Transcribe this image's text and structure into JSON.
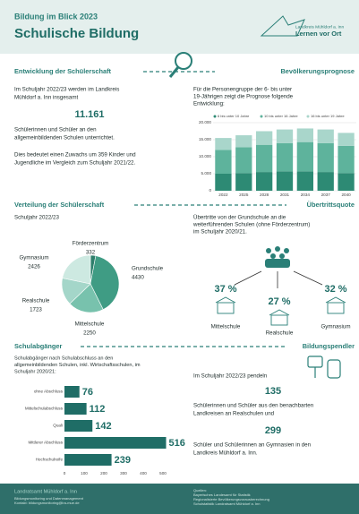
{
  "header": {
    "kicker": "Bildung im Blick 2023",
    "title": "Schulische Bildung",
    "logo_small": "Landkreis Mühldorf a. Inn",
    "logo_big": "Lernen vor Ort"
  },
  "enrolment": {
    "heading": "Entwicklung der Schülerschaft",
    "lines_a": [
      "Im Schuljahr 2022/23 werden im Landkreis",
      "Mühldorf a. Inn insgesamt"
    ],
    "total": "11.161",
    "lines_b": [
      "Schülerinnen und Schüler an den",
      "allgemeinbildenden Schulen unterrichtet."
    ],
    "lines_c": [
      "Dies bedeutet einen Zuwachs um 359 Kinder und",
      "Jugendliche im Vergleich zum Schuljahr 2021/22."
    ]
  },
  "forecast": {
    "heading": "Bevölkerungsprognose",
    "lines": [
      "Für die Personengruppe der 6- bis unter",
      "19-Jährigen zeigt die Prognose folgende",
      "Entwicklung:"
    ]
  },
  "distribution": {
    "heading": "Verteilung der Schülerschaft",
    "subtitle": "Schuljahr 2022/23"
  },
  "transition": {
    "heading": "Übertrittsquote",
    "lines": [
      "Übertritte von der Grundschule an die",
      "weiterführenden Schulen (ohne Förderzentrum)",
      "im Schuljahr 2020/21."
    ],
    "items": [
      {
        "share": "37 %",
        "school": "Mittelschule"
      },
      {
        "share": "27 %",
        "school": "Realschule"
      },
      {
        "share": "32 %",
        "school": "Gymnasium"
      }
    ]
  },
  "leavers": {
    "heading": "Schulabgänger",
    "lines": [
      "Schulabgänger nach Schulabschluss an den",
      "allgemeinbildenden Schulen, inkl. Wirtschaftsschulen, im",
      "Schuljahr 2020/21:"
    ]
  },
  "commuters": {
    "heading": "Bildungspendler",
    "intro": "Im Schuljahr 2022/23 pendeln",
    "n1": "135",
    "lines_a": [
      "Schülerinnen und Schüler aus den benachbarten",
      "Landkreisen an Realschulen und"
    ],
    "n2": "299",
    "lines_b": [
      "Schüler und Schülerinnen an Gymnasien in den",
      "Landkreis Mühldorf a. Inn."
    ]
  },
  "footer": {
    "org": "Landratsamt Mühldorf a. Inn",
    "lines": [
      "Bildungsmonitoring und Datenmanagement",
      "Kontakt: bildungsmonitoring@lra-mue.de"
    ],
    "sources": [
      "Quellen:",
      "Bayerisches Landesamt für Statistik",
      "Regionalisierte Bevölkerungsvorausberechnung",
      "Schulstatistik Landratsamt Mühldorf a. Inn"
    ]
  },
  "chart_data": [
    {
      "type": "bar",
      "stacked": true,
      "categories": [
        "2022",
        "2025",
        "2028",
        "2031",
        "2034",
        "2037",
        "2040"
      ],
      "series": [
        {
          "name": "6 bis unter 10 Jahre",
          "color": "#2d8a74",
          "values": [
            5000,
            5200,
            5500,
            5700,
            5700,
            5500,
            5200
          ]
        },
        {
          "name": "10 bis unter 16 Jahre",
          "color": "#5eb39c",
          "values": [
            7000,
            7600,
            8000,
            8300,
            8600,
            8500,
            8000
          ]
        },
        {
          "name": "16 bis unter 19 Jahre",
          "color": "#a9d6cb",
          "values": [
            3500,
            3500,
            4000,
            4000,
            4000,
            4000,
            3800
          ]
        }
      ],
      "ylim": [
        0,
        20000
      ],
      "yticks": [
        0,
        {
          "value": 5000,
          "label": "5.000"
        },
        {
          "value": 10000,
          "label": "10.000"
        },
        {
          "value": 15000,
          "label": "15.000"
        },
        {
          "value": 20000,
          "label": "20.000"
        }
      ],
      "grid": true,
      "legend": "top"
    },
    {
      "type": "pie",
      "categories": [
        "Förderzentrum",
        "Grundschule",
        "Mittelschule",
        "Realschule",
        "Gymnasium"
      ],
      "values": [
        332,
        4430,
        2250,
        1723,
        2426
      ],
      "colors": [
        "#2f7f6c",
        "#3f9c84",
        "#78c2ad",
        "#a4d6c9",
        "#cde9e1"
      ]
    },
    {
      "type": "bar",
      "orientation": "horizontal",
      "categories": [
        "ohne Abschluss",
        "Mittelschulabschluss",
        "Quali",
        "Mittlerer Abschluss",
        "Hochschulreife"
      ],
      "values": [
        76,
        112,
        142,
        516,
        239
      ],
      "color": "#1f6d66",
      "xlim": [
        0,
        500
      ],
      "xticks": [
        0,
        100,
        200,
        300,
        400,
        500
      ]
    }
  ]
}
